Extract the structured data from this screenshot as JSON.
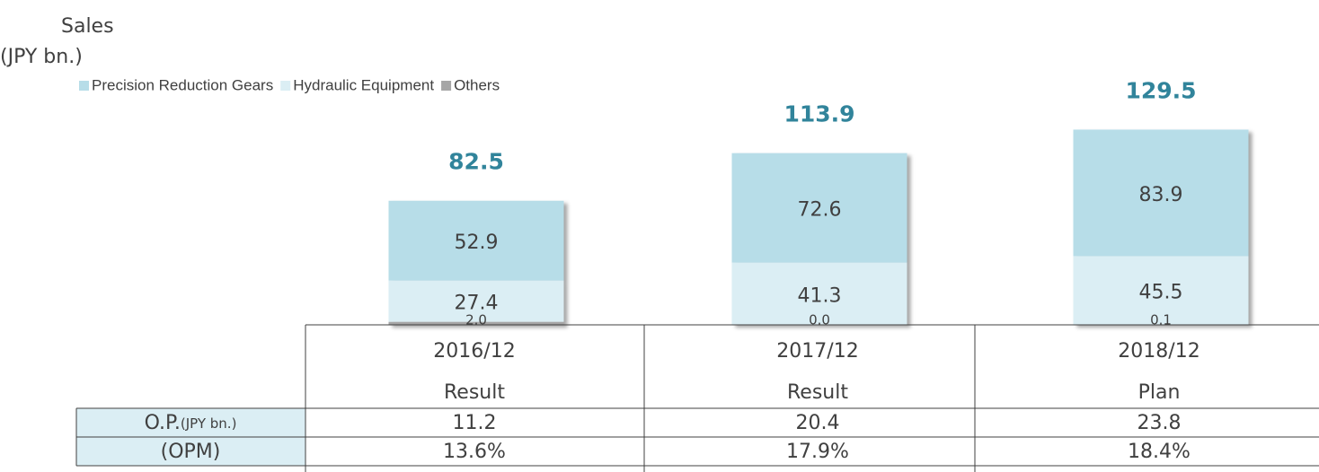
{
  "chart_data": {
    "type": "bar",
    "stacked": true,
    "title": "Sales",
    "y_label": "(JPY bn.)",
    "categories": [
      "2016/12",
      "2017/12",
      "2018/12"
    ],
    "series": [
      {
        "name": "Precision Reduction Gears",
        "color": "#b7dde8",
        "values": [
          52.9,
          72.6,
          83.9
        ]
      },
      {
        "name": "Hydraulic Equipment",
        "color": "#dbeef4",
        "values": [
          27.4,
          41.3,
          45.5
        ]
      },
      {
        "name": "Others",
        "color": "#a6a6a6",
        "values": [
          2.0,
          0.0,
          0.1
        ],
        "value_labels": [
          "2.0",
          "0.0",
          "0.1"
        ]
      }
    ],
    "totals": [
      82.5,
      113.9,
      129.5
    ],
    "totals_color": "#31849b",
    "table": {
      "sub_labels": [
        "Result",
        "Result",
        "Plan"
      ],
      "rows": [
        {
          "label": "O.P.",
          "unit": "(JPY bn.)",
          "values": [
            11.2,
            20.4,
            23.8
          ]
        },
        {
          "label": "(OPM)",
          "values": [
            "13.6%",
            "17.9%",
            "18.4%"
          ]
        }
      ]
    }
  }
}
